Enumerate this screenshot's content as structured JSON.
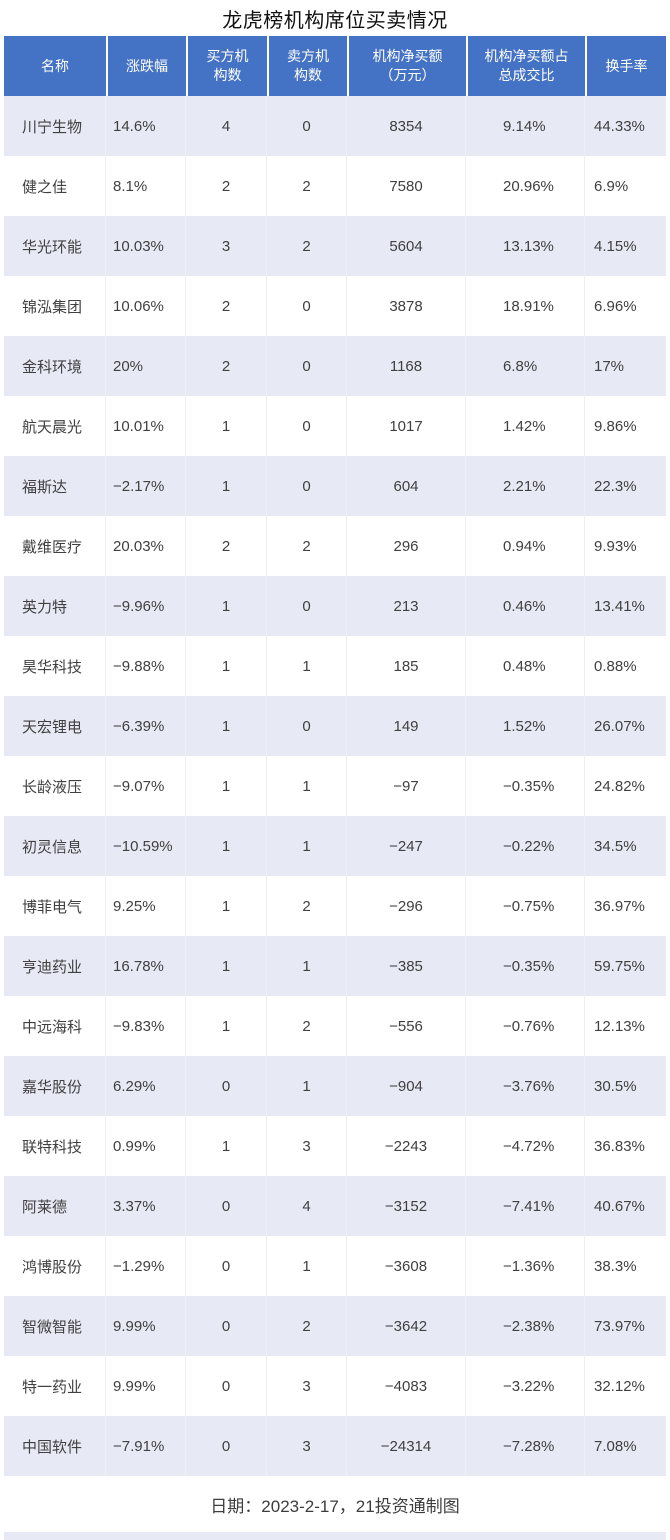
{
  "chart_data": {
    "type": "table",
    "title": "龙虎榜机构席位买卖情况",
    "columns": [
      "名称",
      "涨跌幅",
      "买方机\n构数",
      "卖方机\n构数",
      "机构净买额\n（万元）",
      "机构净买额占\n总成交比",
      "换手率"
    ],
    "rows": [
      [
        "川宁生物",
        "14.6%",
        "4",
        "0",
        "8354",
        "9.14%",
        "44.33%"
      ],
      [
        "健之佳",
        "8.1%",
        "2",
        "2",
        "7580",
        "20.96%",
        "6.9%"
      ],
      [
        "华光环能",
        "10.03%",
        "3",
        "2",
        "5604",
        "13.13%",
        "4.15%"
      ],
      [
        "锦泓集团",
        "10.06%",
        "2",
        "0",
        "3878",
        "18.91%",
        "6.96%"
      ],
      [
        "金科环境",
        "20%",
        "2",
        "0",
        "1168",
        "6.8%",
        "17%"
      ],
      [
        "航天晨光",
        "10.01%",
        "1",
        "0",
        "1017",
        "1.42%",
        "9.86%"
      ],
      [
        "福斯达",
        "−2.17%",
        "1",
        "0",
        "604",
        "2.21%",
        "22.3%"
      ],
      [
        "戴维医疗",
        "20.03%",
        "2",
        "2",
        "296",
        "0.94%",
        "9.93%"
      ],
      [
        "英力特",
        "−9.96%",
        "1",
        "0",
        "213",
        "0.46%",
        "13.41%"
      ],
      [
        "昊华科技",
        "−9.88%",
        "1",
        "1",
        "185",
        "0.48%",
        "0.88%"
      ],
      [
        "天宏锂电",
        "−6.39%",
        "1",
        "0",
        "149",
        "1.52%",
        "26.07%"
      ],
      [
        "长龄液压",
        "−9.07%",
        "1",
        "1",
        "−97",
        "−0.35%",
        "24.82%"
      ],
      [
        "初灵信息",
        "−10.59%",
        "1",
        "1",
        "−247",
        "−0.22%",
        "34.5%"
      ],
      [
        "博菲电气",
        "9.25%",
        "1",
        "2",
        "−296",
        "−0.75%",
        "36.97%"
      ],
      [
        "亨迪药业",
        "16.78%",
        "1",
        "1",
        "−385",
        "−0.35%",
        "59.75%"
      ],
      [
        "中远海科",
        "−9.83%",
        "1",
        "2",
        "−556",
        "−0.76%",
        "12.13%"
      ],
      [
        "嘉华股份",
        "6.29%",
        "0",
        "1",
        "−904",
        "−3.76%",
        "30.5%"
      ],
      [
        "联特科技",
        "0.99%",
        "1",
        "3",
        "−2243",
        "−4.72%",
        "36.83%"
      ],
      [
        "阿莱德",
        "3.37%",
        "0",
        "4",
        "−3152",
        "−7.41%",
        "40.67%"
      ],
      [
        "鸿博股份",
        "−1.29%",
        "0",
        "1",
        "−3608",
        "−1.36%",
        "38.3%"
      ],
      [
        "智微智能",
        "9.99%",
        "0",
        "2",
        "−3642",
        "−2.38%",
        "73.97%"
      ],
      [
        "特一药业",
        "9.99%",
        "0",
        "3",
        "−4083",
        "−3.22%",
        "32.12%"
      ],
      [
        "中国软件",
        "−7.91%",
        "0",
        "3",
        "−24314",
        "−7.28%",
        "7.08%"
      ]
    ],
    "footnote": "日期：2023-2-17，21投资通制图",
    "layout": {
      "striped": true,
      "legend": "none",
      "grid": "off"
    },
    "colors": {
      "header_bg": "#4472c4",
      "header_text": "#ffffff",
      "stripe_bg": "#e7e9f4",
      "row_bg": "#ffffff",
      "body_text": "#404040",
      "title_text": "#111111"
    }
  }
}
